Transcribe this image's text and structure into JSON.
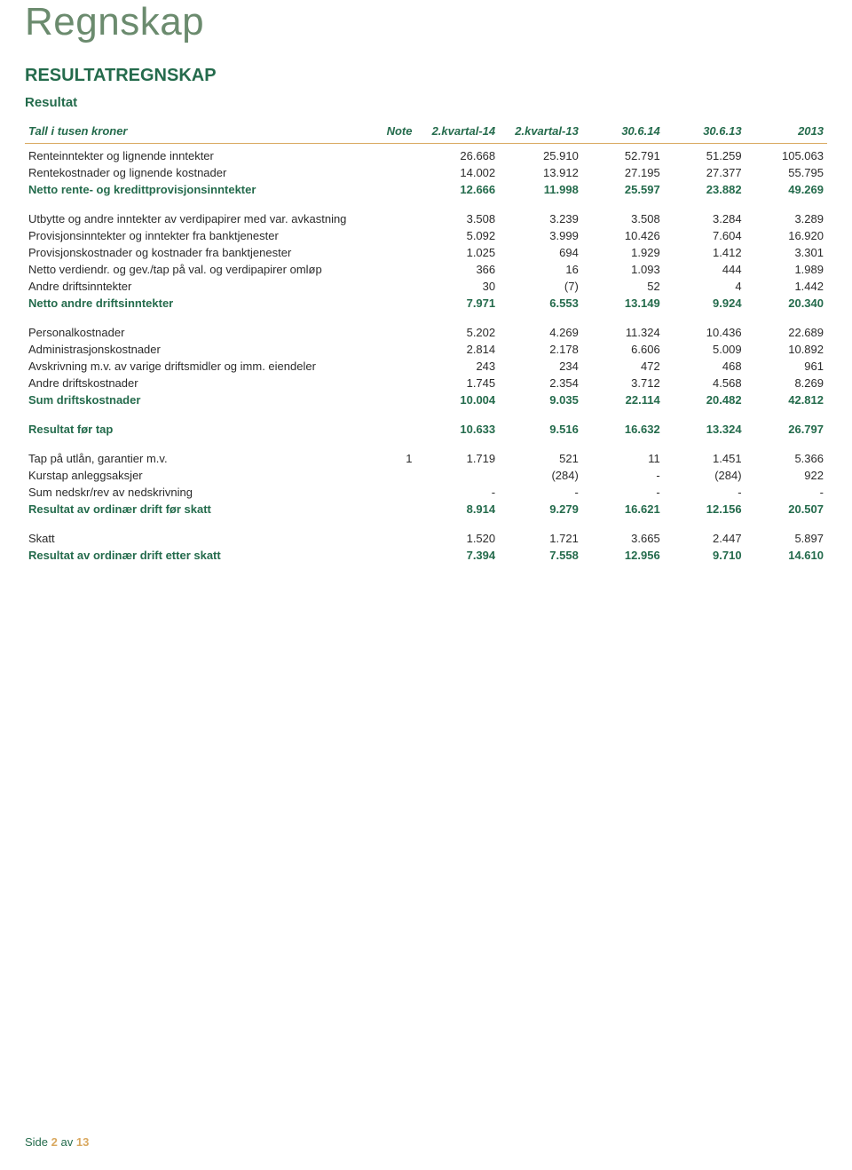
{
  "colors": {
    "title": "#6b8b6e",
    "heading": "#246b4c",
    "accent": "#d9a85f",
    "text": "#2b2b2b",
    "background": "#ffffff"
  },
  "page": {
    "title": "Regnskap",
    "section": "RESULTATREGNSKAP",
    "subsection": "Resultat",
    "footer_prefix": "Side ",
    "footer_page": "2",
    "footer_mid": " av ",
    "footer_total": "13"
  },
  "table": {
    "columns": [
      "Tall i tusen kroner",
      "Note",
      "2.kvartal-14",
      "2.kvartal-13",
      "30.6.14",
      "30.6.13",
      "2013"
    ],
    "groups": [
      {
        "rows": [
          {
            "label": "Renteinntekter og lignende inntekter",
            "note": "",
            "v": [
              "26.668",
              "25.910",
              "52.791",
              "51.259",
              "105.063"
            ],
            "bold": false
          },
          {
            "label": "Rentekostnader og lignende kostnader",
            "note": "",
            "v": [
              "14.002",
              "13.912",
              "27.195",
              "27.377",
              "55.795"
            ],
            "bold": false
          },
          {
            "label": "Netto rente- og kredittprovisjonsinntekter",
            "note": "",
            "v": [
              "12.666",
              "11.998",
              "25.597",
              "23.882",
              "49.269"
            ],
            "bold": true
          }
        ]
      },
      {
        "rows": [
          {
            "label": "Utbytte og andre inntekter av verdipapirer med var. avkastning",
            "note": "",
            "v": [
              "3.508",
              "3.239",
              "3.508",
              "3.284",
              "3.289"
            ],
            "bold": false
          },
          {
            "label": "Provisjonsinntekter og inntekter fra banktjenester",
            "note": "",
            "v": [
              "5.092",
              "3.999",
              "10.426",
              "7.604",
              "16.920"
            ],
            "bold": false
          },
          {
            "label": "Provisjonskostnader og kostnader fra banktjenester",
            "note": "",
            "v": [
              "1.025",
              "694",
              "1.929",
              "1.412",
              "3.301"
            ],
            "bold": false
          },
          {
            "label": "Netto verdiendr. og gev./tap på val. og verdipapirer omløp",
            "note": "",
            "v": [
              "366",
              "16",
              "1.093",
              "444",
              "1.989"
            ],
            "bold": false
          },
          {
            "label": "Andre driftsinntekter",
            "note": "",
            "v": [
              "30",
              "(7)",
              "52",
              "4",
              "1.442"
            ],
            "bold": false
          },
          {
            "label": "Netto andre driftsinntekter",
            "note": "",
            "v": [
              "7.971",
              "6.553",
              "13.149",
              "9.924",
              "20.340"
            ],
            "bold": true
          }
        ]
      },
      {
        "rows": [
          {
            "label": "Personalkostnader",
            "note": "",
            "v": [
              "5.202",
              "4.269",
              "11.324",
              "10.436",
              "22.689"
            ],
            "bold": false
          },
          {
            "label": "Administrasjonskostnader",
            "note": "",
            "v": [
              "2.814",
              "2.178",
              "6.606",
              "5.009",
              "10.892"
            ],
            "bold": false
          },
          {
            "label": "Avskrivning m.v. av varige driftsmidler og imm. eiendeler",
            "note": "",
            "v": [
              "243",
              "234",
              "472",
              "468",
              "961"
            ],
            "bold": false
          },
          {
            "label": "Andre driftskostnader",
            "note": "",
            "v": [
              "1.745",
              "2.354",
              "3.712",
              "4.568",
              "8.269"
            ],
            "bold": false
          },
          {
            "label": "Sum driftskostnader",
            "note": "",
            "v": [
              "10.004",
              "9.035",
              "22.114",
              "20.482",
              "42.812"
            ],
            "bold": true
          }
        ]
      },
      {
        "rows": [
          {
            "label": "Resultat før tap",
            "note": "",
            "v": [
              "10.633",
              "9.516",
              "16.632",
              "13.324",
              "26.797"
            ],
            "bold": true
          }
        ]
      },
      {
        "rows": [
          {
            "label": "Tap på utlån, garantier m.v.",
            "note": "1",
            "v": [
              "1.719",
              "521",
              "11",
              "1.451",
              "5.366"
            ],
            "bold": false
          },
          {
            "label": "Kurstap anleggsaksjer",
            "note": "",
            "v": [
              "",
              "(284)",
              "-",
              "(284)",
              "922"
            ],
            "bold": false
          },
          {
            "label": "Sum nedskr/rev av nedskrivning",
            "note": "",
            "v": [
              "-",
              "-",
              "-",
              "-",
              "-"
            ],
            "bold": false
          },
          {
            "label": "Resultat av ordinær drift før skatt",
            "note": "",
            "v": [
              "8.914",
              "9.279",
              "16.621",
              "12.156",
              "20.507"
            ],
            "bold": true
          }
        ]
      },
      {
        "rows": [
          {
            "label": "Skatt",
            "note": "",
            "v": [
              "1.520",
              "1.721",
              "3.665",
              "2.447",
              "5.897"
            ],
            "bold": false
          },
          {
            "label": "Resultat av ordinær drift etter skatt",
            "note": "",
            "v": [
              "7.394",
              "7.558",
              "12.956",
              "9.710",
              "14.610"
            ],
            "bold": true
          }
        ]
      }
    ]
  }
}
